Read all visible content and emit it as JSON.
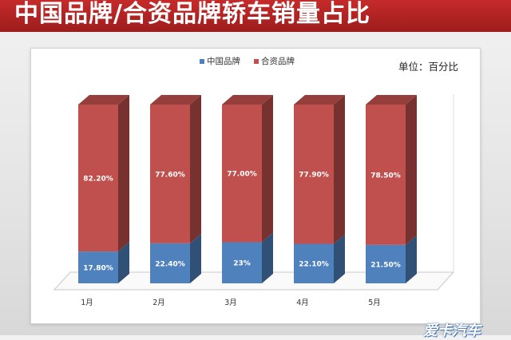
{
  "header": {
    "title": "中国品牌/合资品牌轿车销量占比"
  },
  "watermark": {
    "text": "爱卡汽车"
  },
  "chart_data": {
    "type": "bar",
    "stacked": true,
    "title": "中国品牌/合资品牌轿车销量占比",
    "unit_label": "单位：百分比",
    "categories": [
      "1月",
      "2月",
      "3月",
      "4月",
      "5月"
    ],
    "series": [
      {
        "name": "中国品牌",
        "values": [
          17.8,
          22.4,
          23,
          22.1,
          21.5
        ],
        "labels": [
          "17.80%",
          "22.40%",
          "23%",
          "22.10%",
          "21.50%"
        ],
        "color": "#4f81bd"
      },
      {
        "name": "合资品牌",
        "values": [
          82.2,
          77.6,
          77.0,
          77.9,
          78.5
        ],
        "labels": [
          "82.20%",
          "77.60%",
          "77.00%",
          "77.90%",
          "78.50%"
        ],
        "color": "#c0504d"
      }
    ],
    "ylim": [
      0,
      100
    ],
    "xlabel": "",
    "ylabel": "",
    "legend": "top-center"
  }
}
